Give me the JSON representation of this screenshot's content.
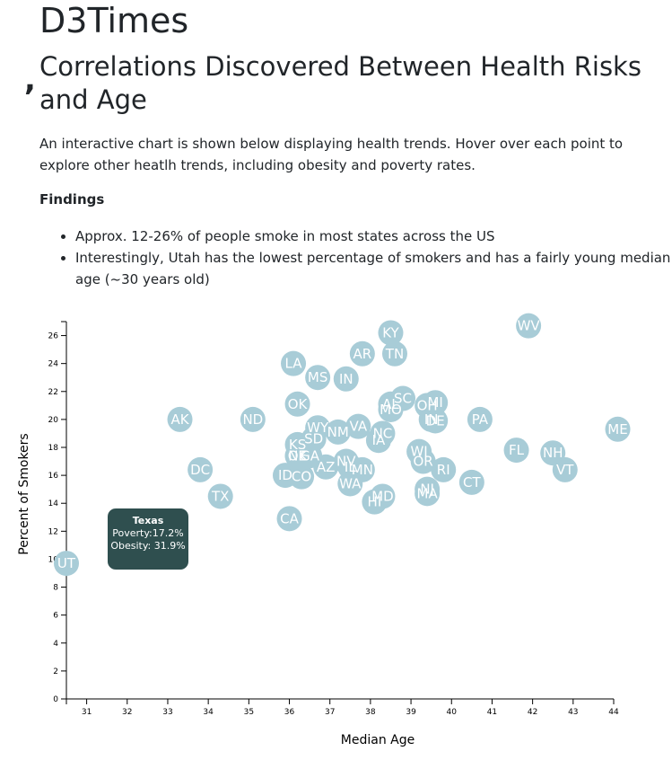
{
  "brand": "D3Times",
  "stray_mark": ",",
  "headline": "Correlations Discovered Between Health Risks and Age",
  "intro": "An interactive chart is shown below displaying health trends. Hover over each point to explore other heatlh trends, including obesity and poverty rates.",
  "findings_title": "Findings",
  "findings": [
    "Approx. 12-26% of people smoke in most states across the US",
    "Interestingly, Utah has the lowest percentage of smokers and has a fairly young median age (~30 years old)"
  ],
  "tooltip": {
    "state": "Texas",
    "poverty": "Poverty:17.2%",
    "obesity": "Obesity: 31.9%"
  },
  "colors": {
    "marker": "#a8ccd7",
    "tooltip_bg": "#2f4f4f",
    "label": "#ffffff"
  },
  "chart_data": {
    "type": "scatter",
    "xlabel": "Median Age",
    "ylabel": "Percent of Smokers",
    "xlim": [
      30.5,
      44
    ],
    "ylim": [
      0,
      27
    ],
    "xticks": [
      31,
      32,
      33,
      34,
      35,
      36,
      37,
      38,
      39,
      40,
      41,
      42,
      43,
      44
    ],
    "yticks": [
      0,
      2,
      4,
      6,
      8,
      10,
      12,
      14,
      16,
      18,
      20,
      22,
      24,
      26
    ],
    "points": [
      {
        "abbr": "UT",
        "x": 30.5,
        "y": 9.7
      },
      {
        "abbr": "AK",
        "x": 33.3,
        "y": 20.0
      },
      {
        "abbr": "ND",
        "x": 35.1,
        "y": 20.0
      },
      {
        "abbr": "DC",
        "x": 33.8,
        "y": 16.4
      },
      {
        "abbr": "TX",
        "x": 34.3,
        "y": 14.5
      },
      {
        "abbr": "CA",
        "x": 36.0,
        "y": 12.9
      },
      {
        "abbr": "ID",
        "x": 35.9,
        "y": 16.0
      },
      {
        "abbr": "CO",
        "x": 36.3,
        "y": 15.9
      },
      {
        "abbr": "NE",
        "x": 36.2,
        "y": 17.4
      },
      {
        "abbr": "OK",
        "x": 36.2,
        "y": 17.4
      },
      {
        "abbr": "KS",
        "x": 36.2,
        "y": 18.2
      },
      {
        "abbr": "SD",
        "x": 36.6,
        "y": 18.6
      },
      {
        "abbr": "LA",
        "x": 36.1,
        "y": 24.0
      },
      {
        "abbr": "MS",
        "x": 36.7,
        "y": 23.0
      },
      {
        "abbr": "OK",
        "x": 36.2,
        "y": 21.1
      },
      {
        "abbr": "WY",
        "x": 36.7,
        "y": 19.4
      },
      {
        "abbr": "NM",
        "x": 37.2,
        "y": 19.1
      },
      {
        "abbr": "AZ",
        "x": 36.9,
        "y": 16.6
      },
      {
        "abbr": "IL",
        "x": 37.5,
        "y": 16.6
      },
      {
        "abbr": "NV",
        "x": 37.4,
        "y": 17.0
      },
      {
        "abbr": "MN",
        "x": 37.8,
        "y": 16.4
      },
      {
        "abbr": "WA",
        "x": 37.5,
        "y": 15.4
      },
      {
        "abbr": "IN",
        "x": 37.4,
        "y": 22.9
      },
      {
        "abbr": "VA",
        "x": 37.7,
        "y": 19.5
      },
      {
        "abbr": "AR",
        "x": 37.8,
        "y": 24.7
      },
      {
        "abbr": "KY",
        "x": 38.5,
        "y": 26.2
      },
      {
        "abbr": "TN",
        "x": 38.6,
        "y": 24.7
      },
      {
        "abbr": "SC",
        "x": 38.8,
        "y": 21.5
      },
      {
        "abbr": "AL",
        "x": 38.5,
        "y": 21.1
      },
      {
        "abbr": "MO",
        "x": 38.5,
        "y": 20.7
      },
      {
        "abbr": "NC",
        "x": 38.3,
        "y": 19.0
      },
      {
        "abbr": "GA",
        "x": 36.5,
        "y": 17.4
      },
      {
        "abbr": "IA",
        "x": 38.2,
        "y": 18.5
      },
      {
        "abbr": "HI",
        "x": 38.1,
        "y": 14.1
      },
      {
        "abbr": "MD",
        "x": 38.3,
        "y": 14.5
      },
      {
        "abbr": "OH",
        "x": 39.4,
        "y": 21.0
      },
      {
        "abbr": "MI",
        "x": 39.6,
        "y": 21.2
      },
      {
        "abbr": "DE",
        "x": 39.6,
        "y": 19.9
      },
      {
        "abbr": "IN",
        "x": 39.5,
        "y": 20.0
      },
      {
        "abbr": "WI",
        "x": 39.2,
        "y": 17.7
      },
      {
        "abbr": "OR",
        "x": 39.3,
        "y": 17.0
      },
      {
        "abbr": "RI",
        "x": 39.8,
        "y": 16.4
      },
      {
        "abbr": "NJ",
        "x": 39.4,
        "y": 15.0
      },
      {
        "abbr": "MA",
        "x": 39.4,
        "y": 14.7
      },
      {
        "abbr": "CT",
        "x": 40.5,
        "y": 15.5
      },
      {
        "abbr": "PA",
        "x": 40.7,
        "y": 20.0
      },
      {
        "abbr": "FL",
        "x": 41.6,
        "y": 17.8
      },
      {
        "abbr": "WV",
        "x": 41.9,
        "y": 26.7
      },
      {
        "abbr": "NH",
        "x": 42.5,
        "y": 17.6
      },
      {
        "abbr": "VT",
        "x": 42.8,
        "y": 16.4
      },
      {
        "abbr": "ME",
        "x": 44.1,
        "y": 19.3
      }
    ]
  }
}
